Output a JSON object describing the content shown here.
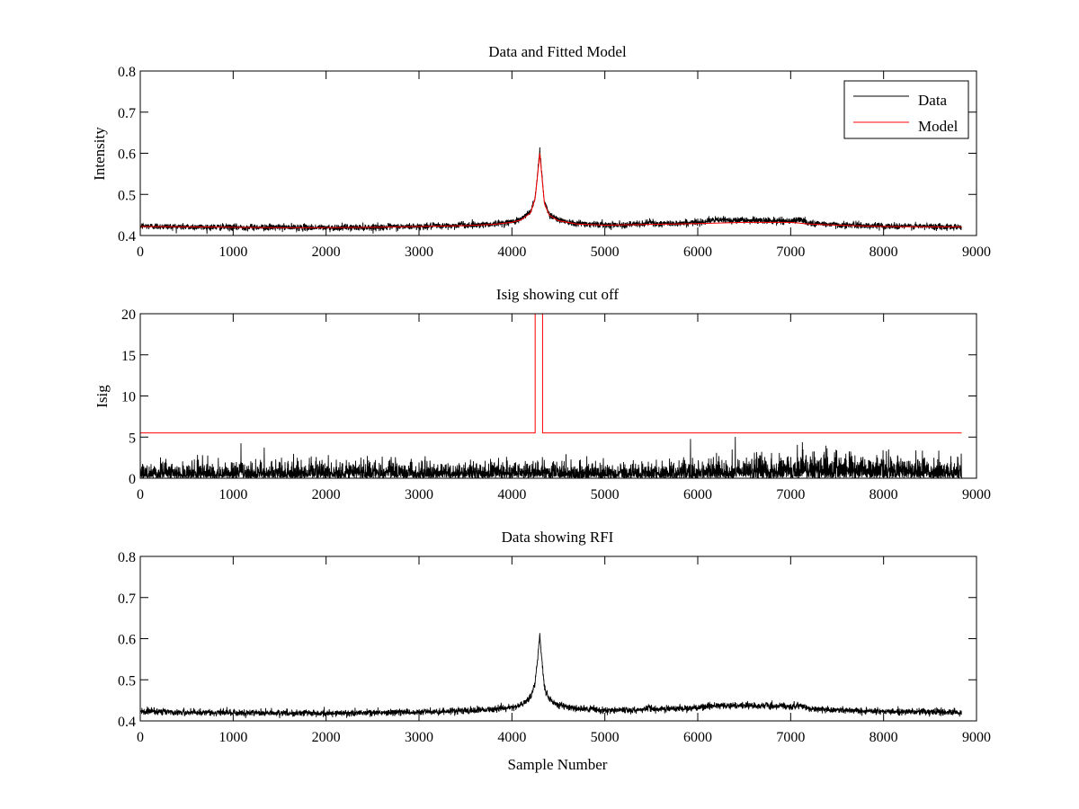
{
  "chart_data": [
    {
      "type": "line",
      "title": "Data and Fitted Model",
      "xlabel": "",
      "ylabel": "Intensity",
      "xlim": [
        0,
        9000
      ],
      "ylim": [
        0.4,
        0.8
      ],
      "xticks": [
        0,
        1000,
        2000,
        3000,
        4000,
        5000,
        6000,
        7000,
        8000,
        9000
      ],
      "yticks": [
        0.4,
        0.5,
        0.6,
        0.7,
        0.8
      ],
      "xtick_labels": [
        "0",
        "1000",
        "2000",
        "3000",
        "4000",
        "5000",
        "6000",
        "7000",
        "8000",
        "9000"
      ],
      "ytick_labels": [
        "0.4",
        "0.5",
        "0.6",
        "0.7",
        "0.8"
      ],
      "grid": false,
      "legend": {
        "placement": "top-right",
        "entries": [
          "Data",
          "Model"
        ]
      },
      "series": [
        {
          "name": "Data",
          "color": "#000000",
          "noisy": true,
          "noise_amplitude": 0.004,
          "x": [
            0,
            500,
            1000,
            1500,
            2000,
            2500,
            3000,
            3400,
            3450,
            3500,
            3800,
            4000,
            4100,
            4200,
            4250,
            4280,
            4300,
            4320,
            4350,
            4400,
            4500,
            4700,
            5000,
            5400,
            5480,
            5550,
            5800,
            6000,
            6200,
            6500,
            6800,
            7000,
            7100,
            7200,
            7500,
            8000,
            8500,
            8840
          ],
          "y": [
            0.423,
            0.421,
            0.42,
            0.42,
            0.419,
            0.42,
            0.422,
            0.424,
            0.428,
            0.425,
            0.428,
            0.433,
            0.44,
            0.458,
            0.492,
            0.56,
            0.608,
            0.555,
            0.48,
            0.452,
            0.438,
            0.43,
            0.426,
            0.427,
            0.433,
            0.428,
            0.43,
            0.432,
            0.438,
            0.437,
            0.436,
            0.435,
            0.439,
            0.43,
            0.426,
            0.423,
            0.422,
            0.421
          ]
        },
        {
          "name": "Model",
          "color": "#ff0000",
          "noisy": false,
          "x": [
            0,
            500,
            1000,
            1500,
            2000,
            2500,
            3000,
            3500,
            3800,
            4000,
            4100,
            4200,
            4250,
            4280,
            4300,
            4320,
            4350,
            4400,
            4500,
            4700,
            5000,
            5500,
            6000,
            6500,
            7000,
            7200,
            7500,
            8000,
            8500,
            8840
          ],
          "y": [
            0.422,
            0.421,
            0.42,
            0.419,
            0.419,
            0.42,
            0.422,
            0.424,
            0.427,
            0.432,
            0.438,
            0.455,
            0.49,
            0.555,
            0.6,
            0.55,
            0.478,
            0.45,
            0.436,
            0.428,
            0.425,
            0.427,
            0.429,
            0.432,
            0.432,
            0.428,
            0.425,
            0.422,
            0.421,
            0.421
          ]
        }
      ]
    },
    {
      "type": "line",
      "title": "Isig showing cut off",
      "xlabel": "",
      "ylabel": "Isig",
      "xlim": [
        0,
        9000
      ],
      "ylim": [
        0,
        20
      ],
      "xticks": [
        0,
        1000,
        2000,
        3000,
        4000,
        5000,
        6000,
        7000,
        8000,
        9000
      ],
      "yticks": [
        0,
        5,
        10,
        15,
        20
      ],
      "xtick_labels": [
        "0",
        "1000",
        "2000",
        "3000",
        "4000",
        "5000",
        "6000",
        "7000",
        "8000",
        "9000"
      ],
      "ytick_labels": [
        "0",
        "5",
        "10",
        "15",
        "20"
      ],
      "grid": false,
      "series": [
        {
          "color": "#000000",
          "noisy": true,
          "noise_style": "spiky",
          "x": [
            0,
            1000,
            2000,
            3000,
            4000,
            5000,
            6000,
            6800,
            7100,
            7500,
            8000,
            8840
          ],
          "y": [
            1.0,
            1.1,
            1.0,
            1.0,
            1.0,
            1.0,
            1.1,
            1.4,
            1.6,
            1.6,
            1.4,
            1.2
          ]
        },
        {
          "color": "#ff0000",
          "noisy": false,
          "x": [
            0,
            4250,
            4250,
            4330,
            4330,
            8840
          ],
          "y": [
            5.5,
            5.5,
            20,
            20,
            5.5,
            5.5
          ]
        }
      ]
    },
    {
      "type": "line",
      "title": "Data showing RFI",
      "xlabel": "Sample Number",
      "ylabel": "",
      "xlim": [
        0,
        9000
      ],
      "ylim": [
        0.4,
        0.8
      ],
      "xticks": [
        0,
        1000,
        2000,
        3000,
        4000,
        5000,
        6000,
        7000,
        8000,
        9000
      ],
      "yticks": [
        0.4,
        0.5,
        0.6,
        0.7,
        0.8
      ],
      "xtick_labels": [
        "0",
        "1000",
        "2000",
        "3000",
        "4000",
        "5000",
        "6000",
        "7000",
        "8000",
        "9000"
      ],
      "ytick_labels": [
        "0.4",
        "0.5",
        "0.6",
        "0.7",
        "0.8"
      ],
      "grid": false,
      "series": [
        {
          "color": "#000000",
          "noisy": true,
          "noise_amplitude": 0.004,
          "x": [
            0,
            500,
            1000,
            1500,
            2000,
            2500,
            3000,
            3400,
            3450,
            3500,
            3800,
            4000,
            4100,
            4200,
            4250,
            4280,
            4300,
            4320,
            4350,
            4400,
            4500,
            4700,
            5000,
            5400,
            5480,
            5550,
            5800,
            6000,
            6200,
            6500,
            6800,
            7000,
            7100,
            7200,
            7500,
            8000,
            8500,
            8840
          ],
          "y": [
            0.423,
            0.421,
            0.42,
            0.42,
            0.419,
            0.42,
            0.422,
            0.424,
            0.428,
            0.425,
            0.428,
            0.433,
            0.44,
            0.458,
            0.492,
            0.56,
            0.608,
            0.555,
            0.48,
            0.452,
            0.438,
            0.43,
            0.426,
            0.427,
            0.433,
            0.428,
            0.43,
            0.432,
            0.438,
            0.437,
            0.436,
            0.435,
            0.439,
            0.43,
            0.426,
            0.423,
            0.422,
            0.421
          ]
        }
      ]
    }
  ]
}
